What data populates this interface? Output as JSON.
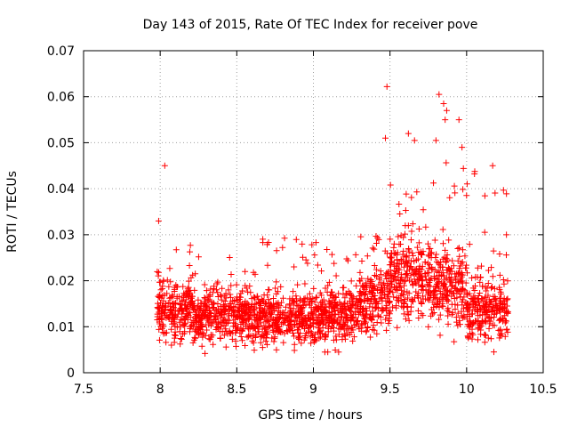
{
  "chart_data": {
    "type": "scatter",
    "title": "Day 143 of 2015, Rate Of TEC Index for receiver pove",
    "xlabel": "GPS time / hours",
    "ylabel": "ROTI / TECUs",
    "xlim": [
      7.5,
      10.5
    ],
    "ylim": [
      0,
      0.07
    ],
    "xticks": [
      7.5,
      8,
      8.5,
      9,
      9.5,
      10,
      10.5
    ],
    "xtick_labels": [
      "7.5",
      "8",
      "8.5",
      "9",
      "9.5",
      "10",
      "10.5"
    ],
    "yticks": [
      0,
      0.01,
      0.02,
      0.03,
      0.04,
      0.05,
      0.06,
      0.07
    ],
    "ytick_labels": [
      "0",
      "0.01",
      "0.02",
      "0.03",
      "0.04",
      "0.05",
      "0.06",
      "0.07"
    ],
    "grid": true,
    "marker": "+",
    "series_color": "#ff0000",
    "highlight_points": [
      {
        "x": 7.99,
        "y": 0.033
      },
      {
        "x": 8.03,
        "y": 0.045
      },
      {
        "x": 9.47,
        "y": 0.051
      },
      {
        "x": 9.48,
        "y": 0.0622
      },
      {
        "x": 9.62,
        "y": 0.052
      },
      {
        "x": 9.66,
        "y": 0.0505
      },
      {
        "x": 9.8,
        "y": 0.0505
      },
      {
        "x": 9.82,
        "y": 0.0605
      },
      {
        "x": 9.85,
        "y": 0.0585
      },
      {
        "x": 9.87,
        "y": 0.057
      },
      {
        "x": 9.86,
        "y": 0.055
      },
      {
        "x": 9.95,
        "y": 0.055
      },
      {
        "x": 9.97,
        "y": 0.049
      },
      {
        "x": 10.17,
        "y": 0.045
      },
      {
        "x": 10.26,
        "y": 0.03
      }
    ],
    "cloud_segments": [
      {
        "x_start": 7.98,
        "x_end": 8.25,
        "y_center": 0.0135,
        "y_spread": 0.007,
        "y_min": 0.006,
        "y_max": 0.028
      },
      {
        "x_start": 8.25,
        "x_end": 8.6,
        "y_center": 0.0125,
        "y_spread": 0.0065,
        "y_min": 0.004,
        "y_max": 0.027
      },
      {
        "x_start": 8.6,
        "x_end": 8.95,
        "y_center": 0.012,
        "y_spread": 0.006,
        "y_min": 0.0035,
        "y_max": 0.0295
      },
      {
        "x_start": 8.95,
        "x_end": 9.3,
        "y_center": 0.0125,
        "y_spread": 0.0065,
        "y_min": 0.0045,
        "y_max": 0.0285
      },
      {
        "x_start": 9.3,
        "x_end": 9.5,
        "y_center": 0.0155,
        "y_spread": 0.0075,
        "y_min": 0.0035,
        "y_max": 0.031
      },
      {
        "x_start": 9.5,
        "x_end": 9.75,
        "y_center": 0.021,
        "y_spread": 0.009,
        "y_min": 0.004,
        "y_max": 0.042
      },
      {
        "x_start": 9.75,
        "x_end": 10.0,
        "y_center": 0.019,
        "y_spread": 0.0095,
        "y_min": 0.003,
        "y_max": 0.049
      },
      {
        "x_start": 10.0,
        "x_end": 10.27,
        "y_center": 0.0135,
        "y_spread": 0.007,
        "y_min": 0.003,
        "y_max": 0.044
      }
    ],
    "cloud_point_count": 2200
  }
}
